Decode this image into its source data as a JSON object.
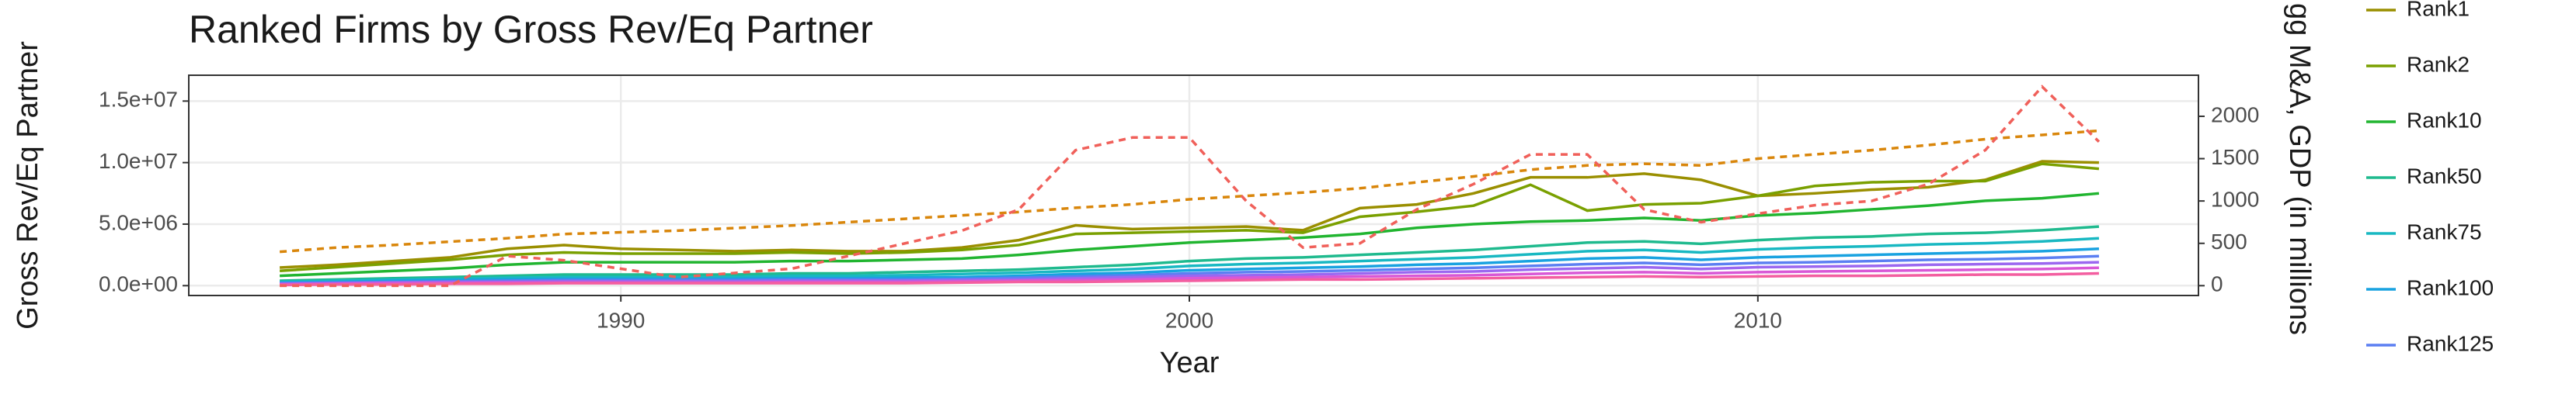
{
  "chart_data": {
    "type": "line",
    "title": "Ranked Firms by Gross Rev/Eq Partner",
    "x_label": "Year",
    "y_label": "Gross Rev/Eq Partner",
    "y2_label": "gg M&A, GDP (in millions",
    "x": [
      1984,
      1985,
      1986,
      1987,
      1988,
      1989,
      1990,
      1991,
      1992,
      1993,
      1994,
      1995,
      1996,
      1997,
      1998,
      1999,
      2000,
      2001,
      2002,
      2003,
      2004,
      2005,
      2006,
      2007,
      2008,
      2009,
      2010,
      2011,
      2012,
      2013,
      2014,
      2015,
      2016
    ],
    "xlim": [
      1982.4,
      2017.75
    ],
    "xticks": [
      1990,
      2000,
      2010
    ],
    "ylim": [
      -800000,
      17100000
    ],
    "yticks": [
      {
        "value": 0,
        "label": "0.0e+00"
      },
      {
        "value": 5000000,
        "label": "5.0e+06"
      },
      {
        "value": 10000000,
        "label": "1.0e+07"
      },
      {
        "value": 15000000,
        "label": "1.5e+07"
      }
    ],
    "y2lim": [
      -116,
      2485
    ],
    "y2ticks": [
      0,
      500,
      1000,
      1500,
      2000
    ],
    "grid": true,
    "series": [
      {
        "name": "Rank1",
        "color": "#9a8f00",
        "values": [
          1470000,
          1700000,
          2000000,
          2300000,
          3000000,
          3300000,
          3000000,
          2900000,
          2800000,
          2900000,
          2800000,
          2800000,
          3100000,
          3700000,
          4900000,
          4600000,
          4700000,
          4800000,
          4500000,
          6300000,
          6600000,
          7500000,
          8800000,
          8800000,
          9100000,
          8600000,
          7300000,
          7500000,
          7800000,
          8000000,
          8600000,
          10100000,
          10000000
        ]
      },
      {
        "name": "Rank2",
        "color": "#7aa000",
        "values": [
          1200000,
          1500000,
          1800000,
          2100000,
          2500000,
          2700000,
          2600000,
          2600000,
          2600000,
          2700000,
          2600000,
          2700000,
          2900000,
          3300000,
          4200000,
          4300000,
          4400000,
          4500000,
          4300000,
          5600000,
          6000000,
          6500000,
          8200000,
          6100000,
          6600000,
          6700000,
          7300000,
          8100000,
          8400000,
          8500000,
          8500000,
          9900000,
          9500000
        ]
      },
      {
        "name": "Rank10",
        "color": "#21b530",
        "values": [
          800000,
          1000000,
          1200000,
          1400000,
          1700000,
          1900000,
          1900000,
          1900000,
          1900000,
          2000000,
          2000000,
          2100000,
          2200000,
          2500000,
          2900000,
          3200000,
          3500000,
          3700000,
          3900000,
          4200000,
          4700000,
          5000000,
          5200000,
          5300000,
          5500000,
          5300000,
          5700000,
          5900000,
          6200000,
          6500000,
          6900000,
          7100000,
          7500000
        ]
      },
      {
        "name": "Rank50",
        "color": "#1fba8e",
        "values": [
          400000,
          500000,
          600000,
          700000,
          800000,
          900000,
          900000,
          900000,
          900000,
          1000000,
          1000000,
          1100000,
          1200000,
          1300000,
          1500000,
          1700000,
          2000000,
          2200000,
          2300000,
          2500000,
          2700000,
          2900000,
          3200000,
          3500000,
          3600000,
          3400000,
          3700000,
          3900000,
          4000000,
          4200000,
          4300000,
          4500000,
          4800000
        ]
      },
      {
        "name": "Rank75",
        "color": "#18b8c2",
        "values": [
          300000,
          400000,
          500000,
          550000,
          650000,
          700000,
          700000,
          700000,
          700000,
          800000,
          800000,
          850000,
          950000,
          1050000,
          1200000,
          1350000,
          1600000,
          1750000,
          1850000,
          2000000,
          2150000,
          2300000,
          2550000,
          2800000,
          2900000,
          2700000,
          2950000,
          3100000,
          3200000,
          3350000,
          3450000,
          3600000,
          3850000
        ]
      },
      {
        "name": "Rank100",
        "color": "#18a2e0",
        "values": [
          250000,
          300000,
          400000,
          450000,
          500000,
          550000,
          550000,
          550000,
          550000,
          600000,
          600000,
          650000,
          700000,
          800000,
          950000,
          1050000,
          1250000,
          1350000,
          1450000,
          1550000,
          1700000,
          1800000,
          2000000,
          2200000,
          2300000,
          2100000,
          2300000,
          2400000,
          2500000,
          2600000,
          2700000,
          2800000,
          3000000
        ]
      },
      {
        "name": "Rank125",
        "color": "#5b7ff2",
        "values": [
          200000,
          250000,
          300000,
          350000,
          400000,
          450000,
          450000,
          450000,
          450000,
          500000,
          500000,
          500000,
          550000,
          650000,
          750000,
          850000,
          1000000,
          1100000,
          1150000,
          1250000,
          1350000,
          1450000,
          1600000,
          1750000,
          1850000,
          1700000,
          1850000,
          1900000,
          2000000,
          2100000,
          2150000,
          2250000,
          2400000
        ]
      },
      {
        "color": "#9b67f0",
        "values": [
          150000,
          200000,
          250000,
          300000,
          300000,
          350000,
          350000,
          350000,
          350000,
          400000,
          400000,
          400000,
          450000,
          500000,
          600000,
          700000,
          800000,
          850000,
          900000,
          1000000,
          1100000,
          1150000,
          1300000,
          1400000,
          1500000,
          1350000,
          1500000,
          1550000,
          1600000,
          1700000,
          1750000,
          1800000,
          1900000
        ]
      },
      {
        "color": "#d857d6",
        "values": [
          100000,
          150000,
          200000,
          200000,
          250000,
          250000,
          250000,
          250000,
          250000,
          300000,
          300000,
          300000,
          350000,
          400000,
          450000,
          500000,
          600000,
          650000,
          700000,
          750000,
          800000,
          850000,
          950000,
          1050000,
          1100000,
          1000000,
          1100000,
          1150000,
          1200000,
          1250000,
          1300000,
          1350000,
          1450000
        ]
      },
      {
        "color": "#f35ea0",
        "values": [
          50000,
          100000,
          100000,
          150000,
          150000,
          200000,
          200000,
          200000,
          200000,
          200000,
          200000,
          200000,
          250000,
          300000,
          300000,
          350000,
          400000,
          450000,
          500000,
          500000,
          550000,
          600000,
          650000,
          700000,
          750000,
          700000,
          750000,
          800000,
          800000,
          850000,
          900000,
          900000,
          1000000
        ]
      },
      {
        "color": "#d9860b",
        "axis": "y2",
        "linestyle": "dashed",
        "values": [
          400,
          450,
          480,
          520,
          560,
          610,
          630,
          650,
          680,
          710,
          750,
          790,
          830,
          870,
          920,
          960,
          1020,
          1060,
          1100,
          1150,
          1220,
          1290,
          1370,
          1420,
          1440,
          1420,
          1500,
          1550,
          1600,
          1660,
          1730,
          1780,
          1830
        ]
      },
      {
        "color": "#f0605a",
        "axis": "y2",
        "linestyle": "dashed",
        "values": [
          0,
          0,
          0,
          0,
          350,
          300,
          200,
          100,
          150,
          200,
          350,
          500,
          650,
          900,
          1600,
          1750,
          1750,
          1000,
          450,
          500,
          900,
          1200,
          1550,
          1550,
          900,
          750,
          850,
          950,
          1000,
          1200,
          1600,
          2350,
          1700
        ]
      }
    ]
  }
}
